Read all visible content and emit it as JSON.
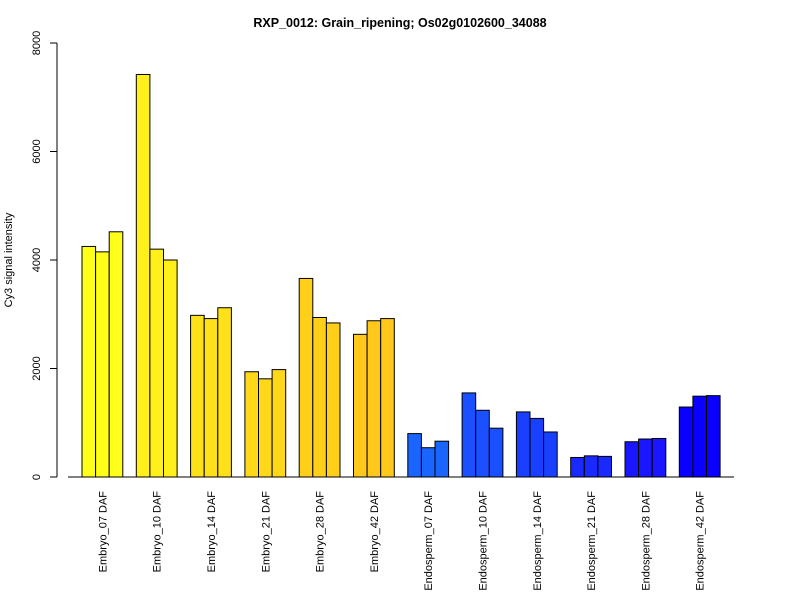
{
  "chart_data": {
    "type": "bar",
    "title": "RXP_0012: Grain_ripening; Os02g0102600_34088",
    "xlabel": "",
    "ylabel": "Cy3 signal intensity",
    "ylim": [
      0,
      8000
    ],
    "yticks": [
      0,
      2000,
      4000,
      6000,
      8000
    ],
    "grid": false,
    "legend": "none",
    "categories": [
      "Embryo_07 DAF",
      "Embryo_10 DAF",
      "Embryo_14 DAF",
      "Embryo_21 DAF",
      "Embryo_28 DAF",
      "Embryo_42 DAF",
      "Endosperm_07 DAF",
      "Endosperm_10 DAF",
      "Endosperm_14 DAF",
      "Endosperm_21 DAF",
      "Endosperm_28 DAF",
      "Endosperm_42 DAF"
    ],
    "replicates_per_category": 3,
    "values": [
      [
        4250,
        4150,
        4520
      ],
      [
        7420,
        4200,
        4000
      ],
      [
        2980,
        2920,
        3120
      ],
      [
        1940,
        1810,
        1980
      ],
      [
        3660,
        2940,
        2840
      ],
      [
        2630,
        2880,
        2920
      ],
      [
        800,
        540,
        660
      ],
      [
        1550,
        1230,
        900
      ],
      [
        1200,
        1080,
        830
      ],
      [
        360,
        390,
        380
      ],
      [
        650,
        700,
        710
      ],
      [
        1290,
        1490,
        1500
      ]
    ],
    "colors": [
      "#ffff1a",
      "#ffef1a",
      "#ffe11a",
      "#ffd81a",
      "#ffcf1a",
      "#ffc81a",
      "#1a64ff",
      "#1a50ff",
      "#1a40ff",
      "#1a2aff",
      "#1a16ff",
      "#0a00ff"
    ]
  }
}
